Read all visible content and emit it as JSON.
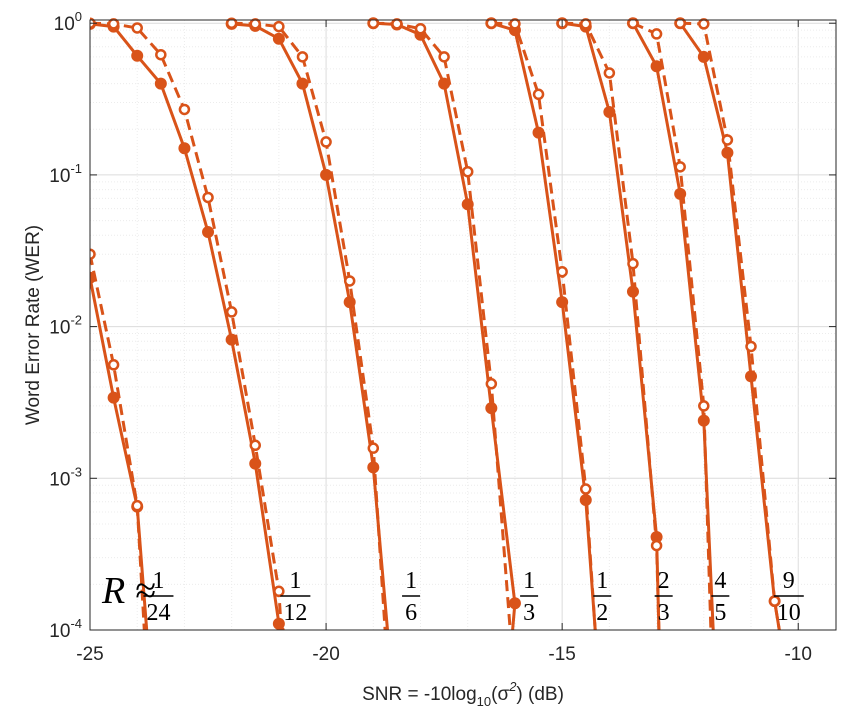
{
  "chart_data": {
    "type": "line",
    "title": "",
    "xlabel": "SNR = -10log10(σ2) (dB)",
    "xlabel_parts": {
      "pre": "SNR = -10log",
      "sub": "10",
      "mid": "(σ",
      "sup": "2",
      "post": ") (dB)"
    },
    "ylabel": "Word Error Rate (WER)",
    "xlim": [
      -25,
      -9.2
    ],
    "ylim": [
      0.0001,
      1.05
    ],
    "yscale": "log",
    "grid": "major+minor",
    "xticks": [
      -25,
      -20,
      -15,
      -10
    ],
    "xtick_labels": [
      "-25",
      "-20",
      "-15",
      "-10"
    ],
    "yticks": [
      1,
      0.1,
      0.01,
      0.001,
      0.0001
    ],
    "ytick_labels": [
      {
        "base": "10",
        "exp": "0"
      },
      {
        "base": "10",
        "exp": "-1"
      },
      {
        "base": "10",
        "exp": "-2"
      },
      {
        "base": "10",
        "exp": "-3"
      },
      {
        "base": "10",
        "exp": "-4"
      }
    ],
    "color": "#d95319",
    "rate_prefix": "R ≈",
    "rate_labels": [
      {
        "num": "1",
        "den": "24",
        "x": -23.55
      },
      {
        "num": "1",
        "den": "12",
        "x": -20.65
      },
      {
        "num": "1",
        "den": "6",
        "x": -18.2
      },
      {
        "num": "1",
        "den": "3",
        "x": -15.7
      },
      {
        "num": "1",
        "den": "2",
        "x": -14.15
      },
      {
        "num": "2",
        "den": "3",
        "x": -12.85
      },
      {
        "num": "4",
        "den": "5",
        "x": -11.65
      },
      {
        "num": "9",
        "den": "10",
        "x": -10.2
      }
    ],
    "series": [
      {
        "style": "solid",
        "x": [
          -25,
          -24.5,
          -24,
          -23.8
        ],
        "y": [
          0.021,
          0.0034,
          0.00065,
          0.0001
        ]
      },
      {
        "style": "dashed",
        "x": [
          -25,
          -24.5,
          -24,
          -23.85
        ],
        "y": [
          0.03,
          0.0056,
          0.00066,
          0.0001
        ]
      },
      {
        "style": "solid",
        "x": [
          -25,
          -24.5,
          -24,
          -23.5,
          -23,
          -22.5,
          -22,
          -21.5,
          -21,
          -20.9
        ],
        "y": [
          0.99,
          0.95,
          0.61,
          0.4,
          0.15,
          0.042,
          0.0082,
          0.00125,
          0.00011,
          0.0001
        ]
      },
      {
        "style": "dashed",
        "x": [
          -25,
          -24.5,
          -24,
          -23.5,
          -23,
          -22.5,
          -22,
          -21.5,
          -21,
          -20.95
        ],
        "y": [
          1.0,
          0.99,
          0.93,
          0.62,
          0.27,
          0.071,
          0.0125,
          0.00165,
          0.00018,
          0.0001
        ]
      },
      {
        "style": "solid",
        "x": [
          -22,
          -21.5,
          -21,
          -20.5,
          -20,
          -19.5,
          -19,
          -18.7
        ],
        "y": [
          0.99,
          0.96,
          0.79,
          0.4,
          0.1,
          0.0145,
          0.00118,
          0.0001
        ]
      },
      {
        "style": "dashed",
        "x": [
          -22,
          -21.5,
          -21,
          -20.5,
          -20,
          -19.5,
          -19,
          -18.75
        ],
        "y": [
          1.0,
          0.99,
          0.95,
          0.6,
          0.165,
          0.02,
          0.00158,
          0.0001
        ]
      },
      {
        "style": "solid",
        "x": [
          -19,
          -18.5,
          -18,
          -17.5,
          -17,
          -16.5,
          -16,
          -16.05
        ],
        "y": [
          1.0,
          0.98,
          0.84,
          0.4,
          0.064,
          0.0029,
          0.00015,
          0.0001
        ]
      },
      {
        "style": "dashed",
        "x": [
          -19,
          -18.5,
          -18,
          -17.5,
          -17,
          -16.5,
          -16.1
        ],
        "y": [
          1.0,
          0.99,
          0.92,
          0.6,
          0.105,
          0.0042,
          0.0001
        ]
      },
      {
        "style": "solid",
        "x": [
          -16.5,
          -16,
          -15.5,
          -15,
          -14.5,
          -14.3
        ],
        "y": [
          1.0,
          0.9,
          0.19,
          0.0145,
          0.00072,
          0.0001
        ]
      },
      {
        "style": "dashed",
        "x": [
          -16.5,
          -16,
          -15.5,
          -15,
          -14.5,
          -14.3
        ],
        "y": [
          1.0,
          0.99,
          0.34,
          0.023,
          0.00085,
          0.0001
        ]
      },
      {
        "style": "solid",
        "x": [
          -15,
          -14.5,
          -14,
          -13.5,
          -13,
          -12.95
        ],
        "y": [
          1.0,
          0.95,
          0.26,
          0.017,
          0.00041,
          0.0001
        ]
      },
      {
        "style": "dashed",
        "x": [
          -15,
          -14.5,
          -14,
          -13.5,
          -13,
          -12.95
        ],
        "y": [
          1.0,
          0.99,
          0.47,
          0.026,
          0.00036,
          0.0001
        ]
      },
      {
        "style": "solid",
        "x": [
          -13.5,
          -13,
          -12.5,
          -12,
          -11.8
        ],
        "y": [
          1.0,
          0.52,
          0.075,
          0.0024,
          0.0001
        ]
      },
      {
        "style": "dashed",
        "x": [
          -13.5,
          -13,
          -12.5,
          -12,
          -11.85
        ],
        "y": [
          1.0,
          0.85,
          0.113,
          0.003,
          0.0001
        ]
      },
      {
        "style": "solid",
        "x": [
          -12.5,
          -12,
          -11.5,
          -11,
          -10.5,
          -10.4
        ],
        "y": [
          1.0,
          0.6,
          0.14,
          0.0047,
          0.000155,
          0.0001
        ]
      },
      {
        "style": "dashed",
        "x": [
          -12.5,
          -12,
          -11.5,
          -11,
          -10.5,
          -10.4
        ],
        "y": [
          1.0,
          0.99,
          0.17,
          0.0074,
          0.000155,
          0.0001
        ]
      }
    ]
  }
}
